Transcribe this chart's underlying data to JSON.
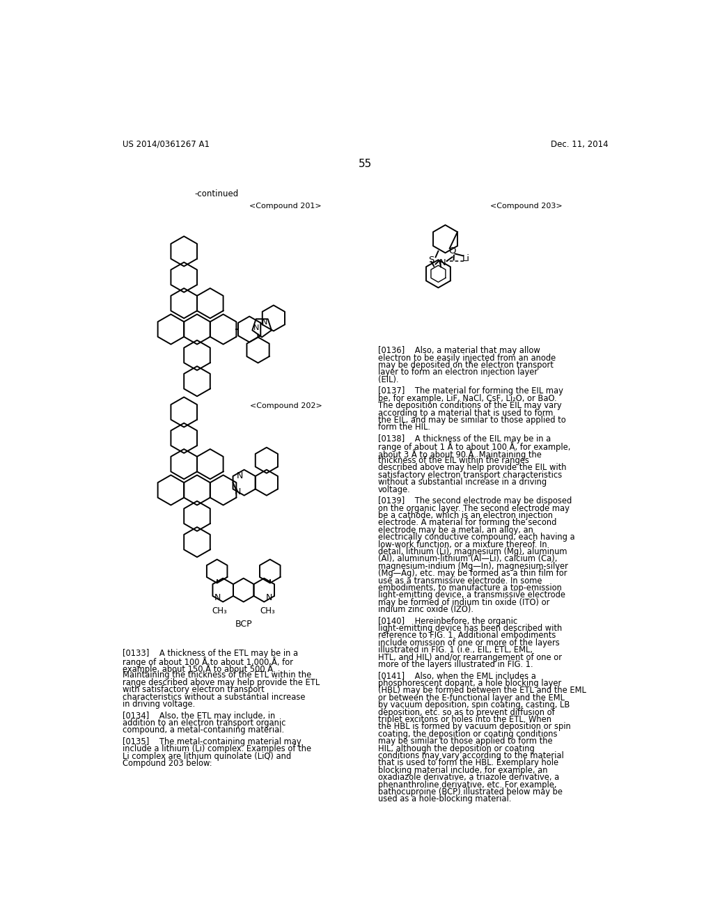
{
  "page_width": 10.24,
  "page_height": 13.2,
  "dpi": 100,
  "background_color": "#ffffff",
  "header_left": "US 2014/0361267 A1",
  "header_right": "Dec. 11, 2014",
  "page_number": "55",
  "continued_label": "-continued",
  "compound201_label": "<Compound 201>",
  "compound202_label": "<Compound 202>",
  "compound203_label": "<Compound 203>",
  "bcp_label": "BCP",
  "paragraphs": [
    {
      "tag": "[0133]",
      "text": "A thickness of the ETL may be in a range of about 100 Å to about 1,000 Å, for example, about 150 Å to about 500 Å. Maintaining the thickness of the ETL within the range described above may help provide the ETL with satisfactory electron transport characteristics without a substantial increase in driving voltage."
    },
    {
      "tag": "[0134]",
      "text": "Also, the ETL may include, in addition to an electron transport organic compound, a metal-containing material."
    },
    {
      "tag": "[0135]",
      "text": "The metal-containing material may include a lithium (Li) complex. Examples of the Li complex are lithium quinolate (LiQ) and Compound 203 below:"
    },
    {
      "tag": "[0136]",
      "text": "Also, a material that may allow electron to be easily injected from an anode may be deposited on the electron transport layer to form an electron injection layer (EIL)."
    },
    {
      "tag": "[0137]",
      "text": "The material for forming the EIL may be, for example, LiF, NaCl, CsF, Li₂O, or BaO. The deposition conditions of the EIL may vary according to a material that is used to form the EIL, and may be similar to those applied to form the HIL."
    },
    {
      "tag": "[0138]",
      "text": "A thickness of the EIL may be in a range of about 1 Å to about 100 Å, for example, about 3 Å to about 90 Å. Maintaining the thickness of the EIL within the ranges described above may help provide the EIL with satisfactory electron transport characteristics without a substantial increase in a driving voltage."
    },
    {
      "tag": "[0139]",
      "text": "The second electrode may be disposed on the organic layer. The second electrode may be a cathode, which is an electron injection electrode. A material for forming the second electrode may be a metal, an alloy, an electrically conductive compound, each having a low-work function, or a mixture thereof. In detail, lithium (Li), magnesium (Mg), aluminum (Al), aluminum-lithium (Al—Li), calcium (Ca), magnesium-indium (Mg—In), magnesium-silver (Mg—Ag), etc. may be formed as a thin film for use as a transmissive electrode. In some embodiments, to manufacture a top-emission light-emitting device, a transmissive electrode may be formed of indium tin oxide (ITO) or indium zinc oxide (IZO)."
    },
    {
      "tag": "[0140]",
      "text": "Hereinbefore, the organic light-emitting device has been described with reference to FIG. 1. Additional embodiments include omission of one or more of the layers illustrated in FIG. 1 (i.e., EIL, ETL, EML, HTL, and HIL) and/or rearrangement of one or more of the layers illustrated in FIG. 1."
    },
    {
      "tag": "[0141]",
      "text": "Also, when the EML includes a phosphorescent dopant, a hole blocking layer (HBL) may be formed between the ETL and the EML or between the E-functional layer and the EML by vacuum deposition, spin coating, casting, LB deposition, etc. so as to prevent diffusion of triplet excitons or holes into the ETL. When the HBL is formed by vacuum deposition or spin coating, the deposition or coating conditions may be similar to those applied to form the HIL, although the deposition or coating conditions may vary according to the material that is used to form the HBL. Exemplary hole blocking material include, for example, an oxadiazole derivative, a triazole derivative, a phenanthroline derivative, etc. For example, bathocuproine (BCP) illustrated below may be used as a hole-blocking material."
    }
  ]
}
